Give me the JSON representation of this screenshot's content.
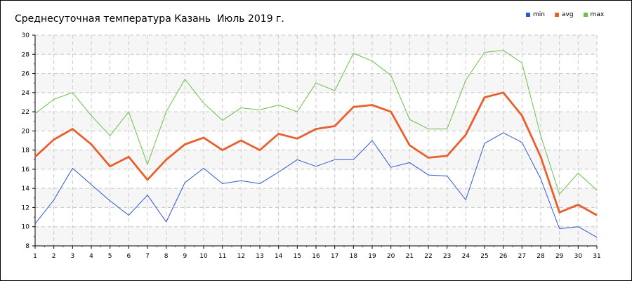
{
  "chart_data": {
    "type": "line",
    "title": "Среднесуточная температура Казань  Июль 2019 г.",
    "xlabel": "",
    "ylabel": "",
    "x": [
      1,
      2,
      3,
      4,
      5,
      6,
      7,
      8,
      9,
      10,
      11,
      12,
      13,
      14,
      15,
      16,
      17,
      18,
      19,
      20,
      21,
      22,
      23,
      24,
      25,
      26,
      27,
      28,
      29,
      30,
      31
    ],
    "ylim": [
      8,
      30
    ],
    "yticks": [
      8,
      10,
      12,
      14,
      16,
      18,
      20,
      22,
      24,
      26,
      28,
      30
    ],
    "grid": true,
    "legend_position": "top-right",
    "series": [
      {
        "name": "min",
        "color": "#2e56d6",
        "values": [
          10.3,
          12.8,
          16.1,
          14.4,
          12.7,
          11.2,
          13.3,
          10.5,
          14.6,
          16.1,
          14.5,
          14.8,
          14.5,
          15.7,
          17.0,
          16.3,
          17.0,
          17.0,
          19.0,
          16.2,
          16.7,
          15.4,
          15.3,
          12.8,
          18.7,
          19.8,
          18.8,
          15.0,
          9.8,
          10.0,
          8.9
        ]
      },
      {
        "name": "avg",
        "color": "#e8602c",
        "values": [
          17.3,
          19.1,
          20.2,
          18.6,
          16.3,
          17.3,
          14.9,
          17.0,
          18.6,
          19.3,
          18.0,
          19.0,
          18.0,
          19.7,
          19.2,
          20.2,
          20.5,
          22.5,
          22.7,
          22.0,
          18.5,
          17.2,
          17.4,
          19.6,
          23.5,
          24.0,
          21.6,
          17.3,
          11.5,
          12.3,
          11.2
        ]
      },
      {
        "name": "max",
        "color": "#6cbf4a",
        "values": [
          21.8,
          23.3,
          24.0,
          21.6,
          19.5,
          22.0,
          16.5,
          22.0,
          25.4,
          22.9,
          21.1,
          22.4,
          22.2,
          22.7,
          22.0,
          25.0,
          24.2,
          28.1,
          27.3,
          25.8,
          21.2,
          20.2,
          20.2,
          25.3,
          28.2,
          28.4,
          27.1,
          19.5,
          13.4,
          15.6,
          13.8
        ]
      }
    ]
  }
}
